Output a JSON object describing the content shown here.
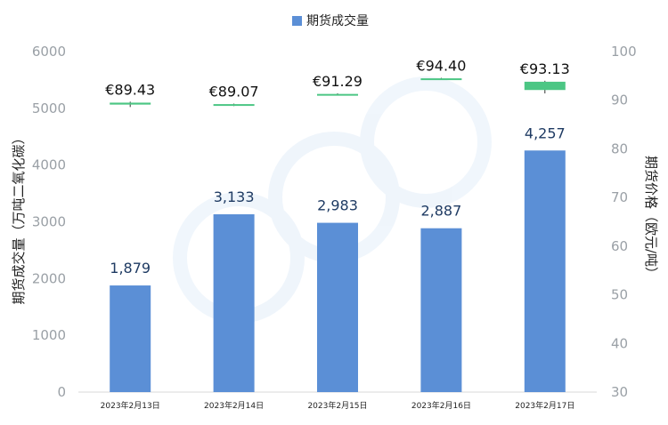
{
  "chart_data": {
    "type": "bar",
    "legend": {
      "label": "期货成交量",
      "position": "top-center",
      "color": "#5b8fd6"
    },
    "categories": [
      "2023年2月13日",
      "2023年2月14日",
      "2023年2月15日",
      "2023年2月16日",
      "2023年2月17日"
    ],
    "series": [
      {
        "name": "期货成交量",
        "axis": "left",
        "values": [
          1879,
          3133,
          2983,
          2887,
          4257
        ],
        "labels": [
          "1,879",
          "3,133",
          "2,983",
          "2,887",
          "4,257"
        ],
        "color": "#5b8fd6"
      }
    ],
    "price_series": {
      "axis": "right",
      "type": "candlestick",
      "open": [
        89.1,
        88.9,
        91.29,
        94.3,
        92.1
      ],
      "close": [
        89.5,
        89.2,
        91.29,
        94.5,
        93.8
      ],
      "high": [
        89.7,
        89.3,
        91.4,
        94.6,
        94.0
      ],
      "low": [
        88.6,
        88.8,
        91.2,
        94.2,
        91.4
      ],
      "labels": [
        "€89.43",
        "€89.07",
        "€91.29",
        "€94.40",
        "€93.13"
      ],
      "up_color": "#4cc684",
      "down_color": "#e05050"
    },
    "y_left": {
      "label": "期货成交量（万吨二氧化碳）",
      "ylim": [
        0,
        6000
      ],
      "ticks": [
        "0",
        "1000",
        "2000",
        "3000",
        "4000",
        "5000",
        "6000"
      ]
    },
    "y_right": {
      "label": "期货价格（欧元/吨）",
      "ylim": [
        30,
        100
      ],
      "ticks": [
        "30",
        "40",
        "50",
        "60",
        "70",
        "80",
        "90",
        "100"
      ]
    },
    "grid": false
  }
}
